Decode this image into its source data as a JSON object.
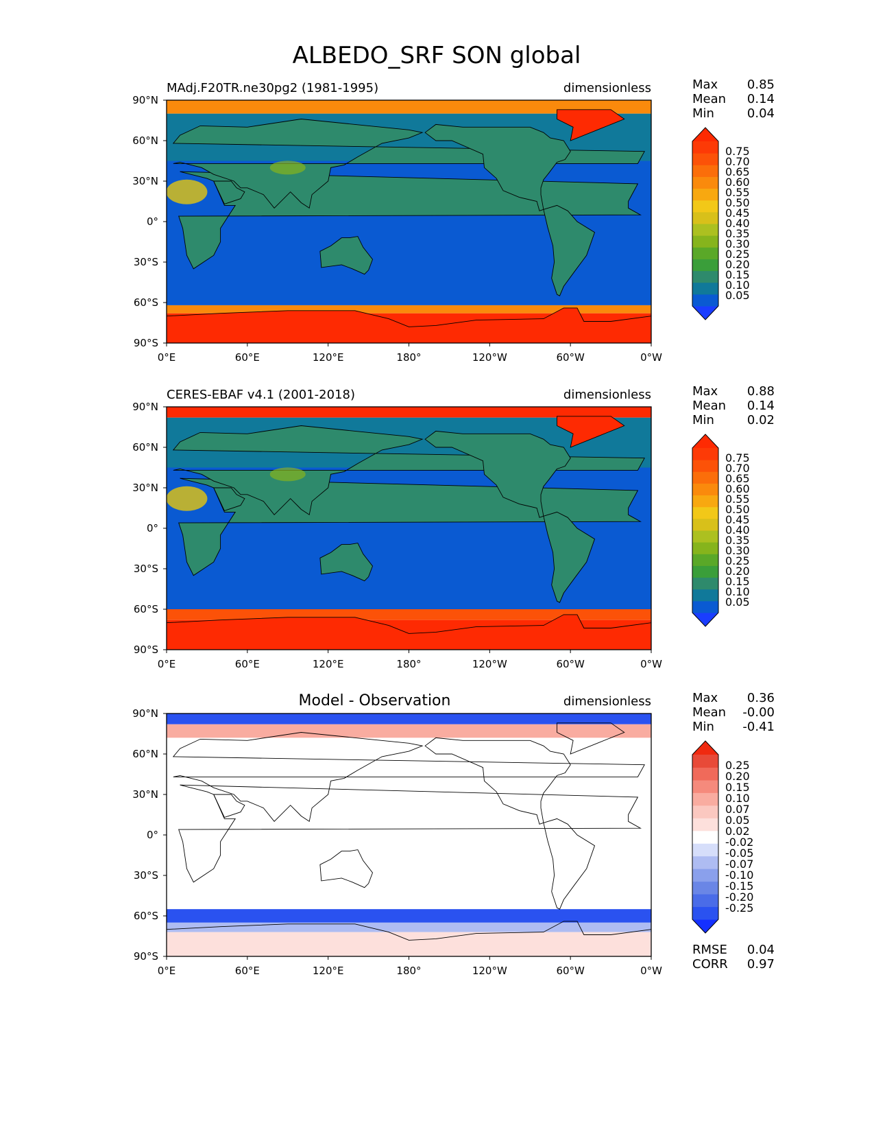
{
  "title": "ALBEDO_SRF SON global",
  "chart_data": [
    {
      "type": "heatmap",
      "name": "model",
      "label_left": "MAdj.F20TR.ne30pg2 (1981-1995)",
      "label_center": "",
      "units": "dimensionless",
      "x_ticks": [
        "0°E",
        "60°E",
        "120°E",
        "180°",
        "120°W",
        "60°W",
        "0°W"
      ],
      "y_ticks": [
        "90°N",
        "60°N",
        "30°N",
        "0°",
        "30°S",
        "60°S",
        "90°S"
      ],
      "xlim": [
        0,
        360
      ],
      "ylim": [
        -90,
        90
      ],
      "stats": [
        {
          "label": "Max",
          "value": "0.85"
        },
        {
          "label": "Mean",
          "value": "0.14"
        },
        {
          "label": "Min",
          "value": "0.04"
        }
      ],
      "colorbar": {
        "ticks": [
          "0.75",
          "0.70",
          "0.65",
          "0.60",
          "0.55",
          "0.50",
          "0.45",
          "0.40",
          "0.35",
          "0.30",
          "0.25",
          "0.20",
          "0.15",
          "0.10",
          "0.05"
        ],
        "colors": [
          "#1a3dff",
          "#0a5ad2",
          "#10799a",
          "#2e8a6c",
          "#3a9e3a",
          "#5aa828",
          "#86b41c",
          "#acc020",
          "#d8c01a",
          "#f2c818",
          "#f8a810",
          "#fa8a0c",
          "#fb6e0a",
          "#fc5208",
          "#fd3a06",
          "#fe2a02"
        ]
      },
      "bands": [
        {
          "lat": [
            90,
            80
          ],
          "value": 0.57
        },
        {
          "lat": [
            80,
            45
          ],
          "value": 0.14
        },
        {
          "lat": [
            45,
            -45
          ],
          "value": 0.07
        },
        {
          "lat": [
            -45,
            -62
          ],
          "value": 0.07
        },
        {
          "lat": [
            -62,
            -68
          ],
          "value": 0.58
        },
        {
          "lat": [
            -68,
            -90
          ],
          "value": 0.8
        }
      ]
    },
    {
      "type": "heatmap",
      "name": "obs",
      "label_left": "CERES-EBAF v4.1 (2001-2018)",
      "label_center": "",
      "units": "dimensionless",
      "x_ticks": [
        "0°E",
        "60°E",
        "120°E",
        "180°",
        "120°W",
        "60°W",
        "0°W"
      ],
      "y_ticks": [
        "90°N",
        "60°N",
        "30°N",
        "0°",
        "30°S",
        "60°S",
        "90°S"
      ],
      "xlim": [
        0,
        360
      ],
      "ylim": [
        -90,
        90
      ],
      "stats": [
        {
          "label": "Max",
          "value": "0.88"
        },
        {
          "label": "Mean",
          "value": "0.14"
        },
        {
          "label": "Min",
          "value": "0.02"
        }
      ],
      "colorbar": {
        "ticks": [
          "0.75",
          "0.70",
          "0.65",
          "0.60",
          "0.55",
          "0.50",
          "0.45",
          "0.40",
          "0.35",
          "0.30",
          "0.25",
          "0.20",
          "0.15",
          "0.10",
          "0.05"
        ],
        "colors": [
          "#1a3dff",
          "#0a5ad2",
          "#10799a",
          "#2e8a6c",
          "#3a9e3a",
          "#5aa828",
          "#86b41c",
          "#acc020",
          "#d8c01a",
          "#f2c818",
          "#f8a810",
          "#fa8a0c",
          "#fb6e0a",
          "#fc5208",
          "#fd3a06",
          "#fe2a02"
        ]
      },
      "bands": [
        {
          "lat": [
            90,
            82
          ],
          "value": 0.78
        },
        {
          "lat": [
            82,
            45
          ],
          "value": 0.14
        },
        {
          "lat": [
            45,
            -45
          ],
          "value": 0.07
        },
        {
          "lat": [
            -45,
            -60
          ],
          "value": 0.07
        },
        {
          "lat": [
            -60,
            -68
          ],
          "value": 0.7
        },
        {
          "lat": [
            -68,
            -90
          ],
          "value": 0.8
        }
      ]
    },
    {
      "type": "heatmap",
      "name": "diff",
      "label_left": "",
      "label_center": "Model - Observation",
      "units": "dimensionless",
      "x_ticks": [
        "0°E",
        "60°E",
        "120°E",
        "180°",
        "120°W",
        "60°W",
        "0°W"
      ],
      "y_ticks": [
        "90°N",
        "60°N",
        "30°N",
        "0°",
        "30°S",
        "60°S",
        "90°S"
      ],
      "xlim": [
        0,
        360
      ],
      "ylim": [
        -90,
        90
      ],
      "stats": [
        {
          "label": "Max",
          "value": "0.36"
        },
        {
          "label": "Mean",
          "value": "-0.00"
        },
        {
          "label": "Min",
          "value": "-0.41"
        }
      ],
      "colorbar": {
        "ticks": [
          "0.25",
          "0.20",
          "0.15",
          "0.10",
          "0.07",
          "0.05",
          "0.02",
          "-0.02",
          "-0.05",
          "-0.07",
          "-0.10",
          "-0.15",
          "-0.20",
          "-0.25"
        ],
        "colors": [
          "#1430ff",
          "#2a52f0",
          "#4a6ce8",
          "#6a86e6",
          "#8aa0ec",
          "#aebcf2",
          "#d6defa",
          "#ffffff",
          "#fde0dc",
          "#fbc8c0",
          "#f9aca0",
          "#f58a7c",
          "#f06a5a",
          "#e84a38",
          "#f02a10"
        ]
      },
      "bands": [
        {
          "lat": [
            90,
            82
          ],
          "value": -0.2
        },
        {
          "lat": [
            82,
            72
          ],
          "value": 0.08
        },
        {
          "lat": [
            72,
            -55
          ],
          "value": 0.0
        },
        {
          "lat": [
            -55,
            -65
          ],
          "value": -0.22
        },
        {
          "lat": [
            -65,
            -72
          ],
          "value": -0.06
        },
        {
          "lat": [
            -72,
            -90
          ],
          "value": 0.04
        }
      ],
      "summary": [
        {
          "label": "RMSE",
          "value": "0.04"
        },
        {
          "label": "CORR",
          "value": "0.97"
        }
      ]
    }
  ]
}
